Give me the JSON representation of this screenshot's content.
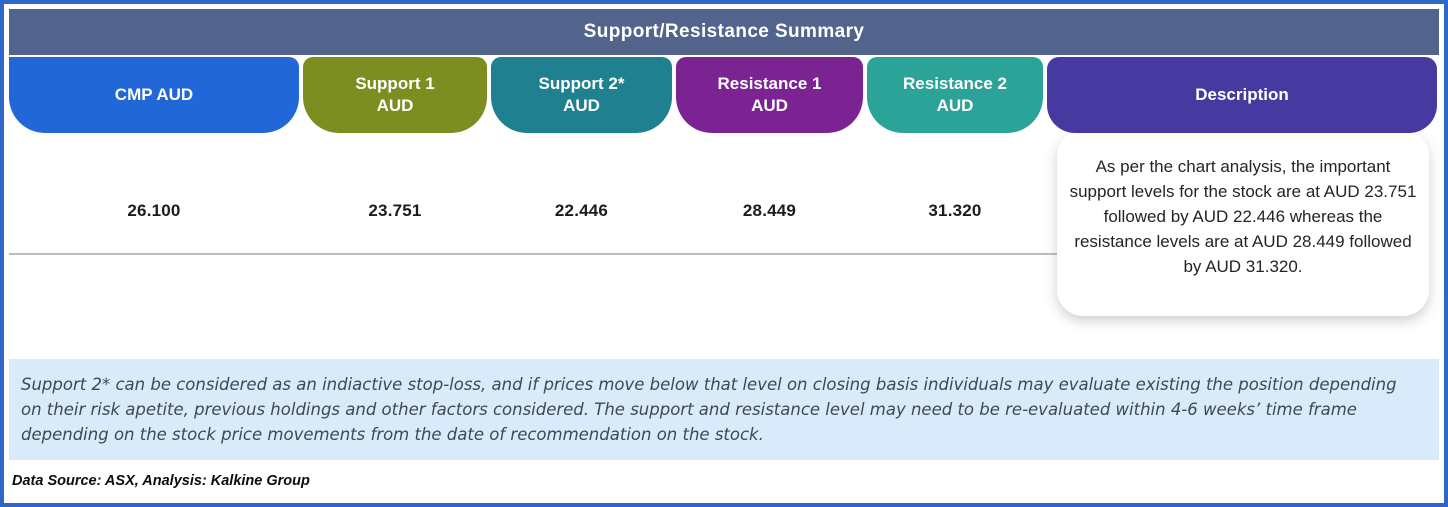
{
  "header": {
    "title": "Support/Resistance Summary"
  },
  "columns": [
    {
      "id": "cmp",
      "label_line1": "CMP AUD",
      "label_line2": "",
      "value": "26.100",
      "color": "#2267d8"
    },
    {
      "id": "support1",
      "label_line1": "Support 1",
      "label_line2": "AUD",
      "value": "23.751",
      "color": "#7d8e21"
    },
    {
      "id": "support2",
      "label_line1": "Support 2*",
      "label_line2": "AUD",
      "value": "22.446",
      "color": "#1f808f"
    },
    {
      "id": "resistance1",
      "label_line1": "Resistance 1",
      "label_line2": "AUD",
      "value": "28.449",
      "color": "#7c2394"
    },
    {
      "id": "resistance2",
      "label_line1": "Resistance 2",
      "label_line2": "AUD",
      "value": "31.320",
      "color": "#2ba398"
    }
  ],
  "description": {
    "header": "Description",
    "color": "#46399f",
    "text": "As per the chart analysis, the important support levels for the stock are at AUD 23.751 followed by AUD 22.446 whereas the resistance levels are at AUD 28.449 followed by AUD 31.320."
  },
  "note": "Support 2* can be considered as an indiactive stop-loss, and if prices move below that level on closing basis individuals may evaluate existing the position depending on their risk apetite, previous holdings and other factors considered. The support and resistance level may need to be re-evaluated within 4-6 weeks’ time frame depending on the stock price movements from  the date of recommendation on the stock.",
  "footer": "Data Source: ASX, Analysis: Kalkine Group",
  "colors": {
    "border": "#2e66c9",
    "header_bar": "#52648b",
    "note_bg": "#d9eafb",
    "divider": "#bcbcbc"
  },
  "chart_data": {
    "type": "table",
    "title": "Support/Resistance Summary",
    "columns": [
      "CMP AUD",
      "Support 1 AUD",
      "Support 2* AUD",
      "Resistance 1 AUD",
      "Resistance 2 AUD",
      "Description"
    ],
    "rows": [
      [
        "26.100",
        "23.751",
        "22.446",
        "28.449",
        "31.320",
        "As per the chart analysis, the important support levels for the stock are at AUD 23.751 followed by AUD 22.446 whereas the resistance levels are at AUD 28.449 followed by AUD 31.320."
      ]
    ],
    "currency": "AUD",
    "cmp": 26.1,
    "support_levels": [
      23.751,
      22.446
    ],
    "resistance_levels": [
      28.449,
      31.32
    ]
  }
}
